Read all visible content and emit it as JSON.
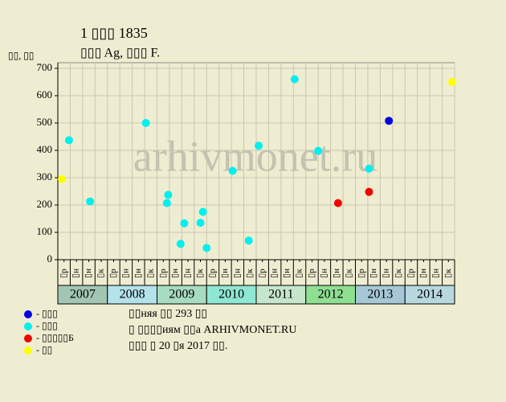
{
  "chart_data": {
    "type": "scatter",
    "title": "1 ▯▯▯ 1835",
    "subtitle": "▯▯▯ Ag, ▯▯▯ F.",
    "y_label": "▯▯, ▯▯",
    "watermark": "arhivmonet.ru",
    "xlim": [
      0,
      32
    ],
    "xticks": [
      {
        "value": 0.5,
        "label": "▯р"
      },
      {
        "value": 1.5,
        "label": "▯н"
      },
      {
        "value": 2.5,
        "label": "▯н"
      },
      {
        "value": 3.5,
        "label": "▯к"
      },
      {
        "value": 4.5,
        "label": "▯р"
      },
      {
        "value": 5.5,
        "label": "▯н"
      },
      {
        "value": 6.5,
        "label": "▯н"
      },
      {
        "value": 7.5,
        "label": "▯к"
      },
      {
        "value": 8.5,
        "label": "▯р"
      },
      {
        "value": 9.5,
        "label": "▯н"
      },
      {
        "value": 10.5,
        "label": "▯н"
      },
      {
        "value": 11.5,
        "label": "▯к"
      },
      {
        "value": 12.5,
        "label": "▯р"
      },
      {
        "value": 13.5,
        "label": "▯н"
      },
      {
        "value": 14.5,
        "label": "▯н"
      },
      {
        "value": 15.5,
        "label": "▯к"
      },
      {
        "value": 16.5,
        "label": "▯р"
      },
      {
        "value": 17.5,
        "label": "▯н"
      },
      {
        "value": 18.5,
        "label": "▯н"
      },
      {
        "value": 19.5,
        "label": "▯к"
      },
      {
        "value": 20.5,
        "label": "▯р"
      },
      {
        "value": 21.5,
        "label": "▯н"
      },
      {
        "value": 22.5,
        "label": "▯н"
      },
      {
        "value": 23.5,
        "label": "▯к"
      },
      {
        "value": 24.5,
        "label": "▯р"
      },
      {
        "value": 25.5,
        "label": "▯н"
      },
      {
        "value": 26.5,
        "label": "▯н"
      },
      {
        "value": 27.5,
        "label": "▯к"
      },
      {
        "value": 28.5,
        "label": "▯р"
      },
      {
        "value": 29.5,
        "label": "▯н"
      },
      {
        "value": 30.5,
        "label": "▯н"
      },
      {
        "value": 31.5,
        "label": "▯к"
      }
    ],
    "years": [
      {
        "label": "2007",
        "color": "#a3c6b4"
      },
      {
        "label": "2008",
        "color": "#b4e2ea"
      },
      {
        "label": "2009",
        "color": "#a8dcc0"
      },
      {
        "label": "2010",
        "color": "#8fe6d2"
      },
      {
        "label": "2011",
        "color": "#c6e6cc"
      },
      {
        "label": "2012",
        "color": "#8fdf92"
      },
      {
        "label": "2013",
        "color": "#a6c8d6"
      },
      {
        "label": "2014",
        "color": "#b8d8e0"
      }
    ],
    "ylim": [
      0,
      700
    ],
    "yticks": [
      0,
      100,
      200,
      300,
      400,
      500,
      600,
      700
    ],
    "grid": true,
    "series": [
      {
        "name": "- ▯▯▯",
        "color": "#0000e0",
        "x": [
          26.7
        ],
        "values": [
          508
        ]
      },
      {
        "name": "- ▯▯▯",
        "color": "#00f0f0",
        "x": [
          0.9,
          2.6,
          7.1,
          8.9,
          8.8,
          9.9,
          10.2,
          11.5,
          11.7,
          12.0,
          14.1,
          15.4,
          16.2,
          19.1,
          21.0,
          25.1
        ],
        "values": [
          437,
          213,
          500,
          237,
          207,
          58,
          133,
          135,
          175,
          43,
          325,
          70,
          417,
          660,
          398,
          333
        ]
      },
      {
        "name": "- ▯▯▯▯▯Б",
        "color": "#f00000",
        "x": [
          22.6,
          25.1
        ],
        "values": [
          207,
          248
        ]
      },
      {
        "name": "- ▯▯",
        "color": "#ffff00",
        "x": [
          0.32,
          31.8
        ],
        "values": [
          295,
          650
        ]
      }
    ],
    "notes": [
      "▯▯няя ▯▯ 293 ▯▯",
      "▯ ▯▯▯▯иям ▯▯а ARHIVMONET.RU",
      "▯▯▯ ▯ 20 ▯я 2017 ▯▯."
    ]
  }
}
